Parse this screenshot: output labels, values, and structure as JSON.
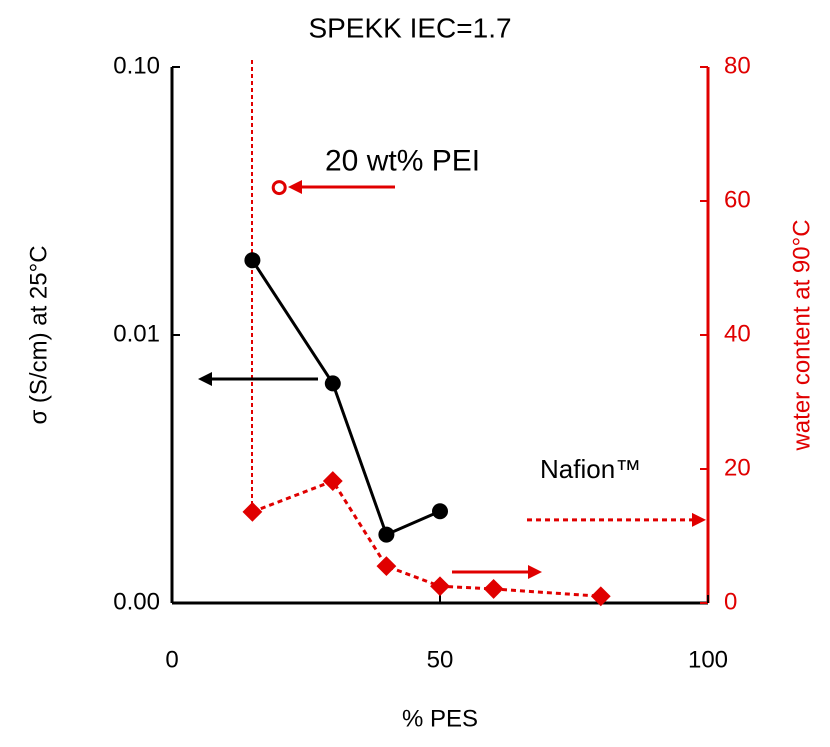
{
  "chart_data": {
    "type": "line",
    "title": "SPEKK IEC=1.7",
    "xlabel": "% PES",
    "ylabel": "σ (S/cm)  at 25°C",
    "y2label": "water content at 90°C",
    "xlim": [
      0,
      100
    ],
    "xticks": [
      0,
      50,
      100
    ],
    "yscale": "log",
    "ylim": [
      0.001,
      0.1
    ],
    "yticks": [
      {
        "value": 0.001,
        "label": "0.00"
      },
      0.01,
      {
        "value": 0.1,
        "label": "0.10"
      }
    ],
    "y2lim": [
      0,
      80
    ],
    "y2ticks": [
      0,
      20,
      40,
      60,
      80
    ],
    "series": [
      {
        "color": "#000000",
        "x": [
          15,
          30,
          40,
          50
        ],
        "values": [
          0.019,
          0.0066,
          0.0018,
          0.0022
        ]
      },
      {
        "color": "#e00000",
        "axis": "y2",
        "dashed": true,
        "x": [
          15,
          30,
          40,
          50,
          60,
          80
        ],
        "values": [
          13.6,
          18.2,
          5.5,
          2.5,
          2.1,
          1.0
        ]
      }
    ],
    "annotations": [
      {
        "text": "20 wt% PEI",
        "x": 20,
        "value": 62,
        "axis": "y2",
        "color": "#e00000"
      },
      {
        "text": "Nafion™",
        "value": 12.4,
        "axis": "y2",
        "color": "#e00000"
      }
    ]
  }
}
